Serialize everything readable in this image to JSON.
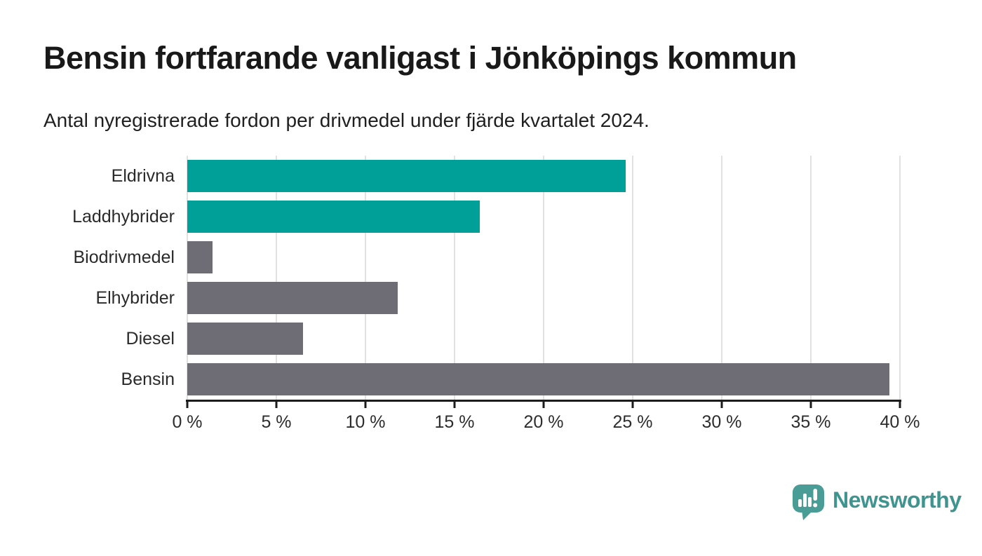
{
  "page": {
    "background": "#ffffff"
  },
  "header": {
    "title": "Bensin fortfarande vanligast i Jönköpings kommun",
    "subtitle": "Antal nyregistrerade fordon per drivmedel under fjärde kvartalet 2024."
  },
  "chart_data": {
    "type": "bar",
    "orientation": "horizontal",
    "title": "Bensin fortfarande vanligast i Jönköpings kommun",
    "subtitle": "Antal nyregistrerade fordon per drivmedel under fjärde kvartalet 2024.",
    "categories": [
      "Eldrivna",
      "Laddhybrider",
      "Biodrivmedel",
      "Elhybrider",
      "Diesel",
      "Bensin"
    ],
    "values": [
      24.6,
      16.4,
      1.4,
      11.8,
      6.5,
      39.4
    ],
    "unit": "%",
    "bar_colors": [
      "#00A099",
      "#00A099",
      "#6E6D76",
      "#6E6D76",
      "#6E6D76",
      "#6E6D76"
    ],
    "x_axis": {
      "min": 0,
      "max": 40,
      "tick_values": [
        0,
        5,
        10,
        15,
        20,
        25,
        30,
        35,
        40
      ],
      "ticks": [
        "0 %",
        "5 %",
        "10 %",
        "15 %",
        "20 %",
        "25 %",
        "30 %",
        "35 %",
        "40 %"
      ]
    },
    "grid": true,
    "legend": "none",
    "colors": {
      "electric_series": "#00A099",
      "other_series": "#6E6D76",
      "gridline": "#E1E1E1",
      "axis": "#1C1C1C"
    }
  },
  "footer": {
    "brand": "Newsworthy",
    "brand_color": "#3F948F",
    "logo_icon": "newsworthy-speech-bubble-chart-icon",
    "logo_icon_color": "#4A9C96"
  }
}
